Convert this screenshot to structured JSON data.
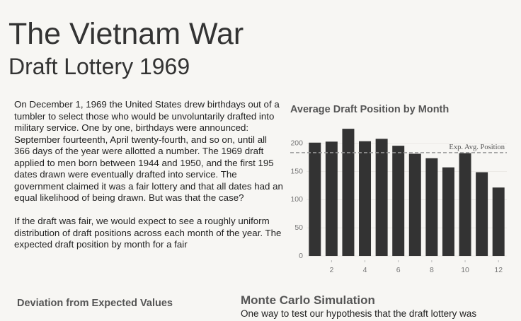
{
  "header": {
    "title": "The Vietnam War",
    "subtitle": "Draft Lottery 1969"
  },
  "intro": {
    "paragraphs": [
      "On December 1, 1969 the United States drew birthdays out of a tumbler to select those who would be unvoluntarily drafted into military service. One by one, birthdays were announced: September fourteenth, April twenty-fourth, and so on, until all 366 days of the year were allotted a number. The 1969 draft applied to men born between 1944 and 1950, and the first 195 dates drawn were eventually drafted into service. The government claimed it was a fair lottery and that all dates had an equal likelihood of being drawn. But was that the case?",
      "If the draft was fair, we would expect to see a roughly uniform distribution of draft positions across each month of the year. The expected draft position by month for a fair"
    ]
  },
  "chart_data": {
    "type": "bar",
    "title": "Average Draft Position by Month",
    "x": [
      1,
      2,
      3,
      4,
      5,
      6,
      7,
      8,
      9,
      10,
      11,
      12
    ],
    "values": [
      201.2,
      203,
      225.8,
      203.7,
      208,
      195.7,
      181.5,
      173.5,
      157.3,
      182.5,
      148.7,
      121.5
    ],
    "color": "#333333",
    "xlim": [
      0.5,
      12.5
    ],
    "xticks": [
      2,
      4,
      6,
      8,
      10,
      12
    ],
    "ylim": [
      -7.5,
      231
    ],
    "yticks": [
      0,
      50,
      100,
      150,
      200
    ],
    "reference": {
      "value": 183.5,
      "label": "Exp. Avg. Position"
    }
  },
  "sections": [
    {
      "title": "Deviation from Expected Values"
    },
    {
      "title": "Monte Carlo Simulation",
      "text": "One way to test our hypothesis that the draft lottery was"
    }
  ]
}
